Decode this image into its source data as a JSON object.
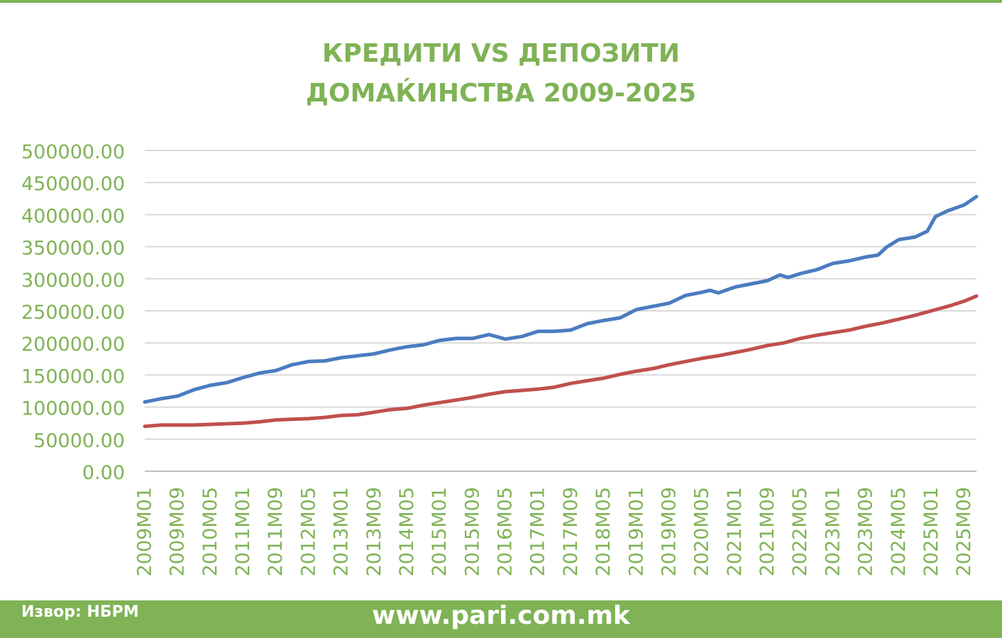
{
  "title_line1": "КРЕДИТИ VS ДЕПОЗИТИ",
  "title_line2": "ДОМАЌИНСТВА 2009-2025",
  "source": "Извор: НБРМ",
  "website": "www.pari.com.mk",
  "colors": {
    "brand_green": "#7fb356",
    "deposits_line": "#4a7cc0",
    "credits_line": "#c0504d",
    "gridline": "#d9d9d9"
  },
  "chart_data": {
    "type": "line",
    "title": "КРЕДИТИ VS ДЕПОЗИТИ ДОМАЌИНСТВА 2009-2025",
    "xlabel": "",
    "ylabel": "",
    "ylim": [
      0,
      500000
    ],
    "yticks": [
      "0.00",
      "50000.00",
      "100000.00",
      "150000.00",
      "200000.00",
      "250000.00",
      "300000.00",
      "350000.00",
      "400000.00",
      "450000.00",
      "500000.00"
    ],
    "xticks": [
      "2009M01",
      "2009M09",
      "2010M05",
      "2011M01",
      "2011M09",
      "2012M05",
      "2013M01",
      "2013M09",
      "2014M05",
      "2015M01",
      "2015M09",
      "2016M05",
      "2017M01",
      "2017M09",
      "2018M05",
      "2019M01",
      "2019M09",
      "2020M05",
      "2021M01",
      "2021M09",
      "2022M05",
      "2023M01",
      "2023M09",
      "2024M05",
      "2025M01",
      "2025M09"
    ],
    "grid": true,
    "legend": "none",
    "series": [
      {
        "color": "#4a7cc0",
        "x": [
          "2009M01",
          "2009M05",
          "2009M09",
          "2010M01",
          "2010M05",
          "2010M09",
          "2011M01",
          "2011M05",
          "2011M09",
          "2012M01",
          "2012M05",
          "2012M09",
          "2013M01",
          "2013M05",
          "2013M09",
          "2014M01",
          "2014M05",
          "2014M09",
          "2015M01",
          "2015M05",
          "2015M09",
          "2016M01",
          "2016M05",
          "2016M09",
          "2017M01",
          "2017M05",
          "2017M09",
          "2018M01",
          "2018M05",
          "2018M09",
          "2019M01",
          "2019M05",
          "2019M09",
          "2020M01",
          "2020M05",
          "2020M07",
          "2020M09",
          "2021M01",
          "2021M05",
          "2021M09",
          "2021M12",
          "2022M02",
          "2022M05",
          "2022M09",
          "2023M01",
          "2023M05",
          "2023M09",
          "2023M12",
          "2024M02",
          "2024M05",
          "2024M09",
          "2024M12",
          "2025M02",
          "2025M05",
          "2025M09",
          "2025M12"
        ],
        "values": [
          108000,
          113000,
          117000,
          127000,
          134000,
          138000,
          146000,
          153000,
          157000,
          166000,
          171000,
          172000,
          177000,
          180000,
          183000,
          189000,
          194000,
          197000,
          204000,
          207000,
          207000,
          213000,
          206000,
          210000,
          218000,
          218000,
          220000,
          230000,
          235000,
          239000,
          252000,
          257000,
          262000,
          274000,
          279000,
          282000,
          278000,
          287000,
          292000,
          297000,
          306000,
          302000,
          308000,
          314000,
          324000,
          328000,
          334000,
          337000,
          349000,
          361000,
          365000,
          374000,
          397000,
          406000,
          415000,
          428000
        ]
      },
      {
        "color": "#c0504d",
        "x": [
          "2009M01",
          "2009M05",
          "2009M09",
          "2010M01",
          "2010M05",
          "2010M09",
          "2011M01",
          "2011M05",
          "2011M09",
          "2012M01",
          "2012M05",
          "2012M09",
          "2013M01",
          "2013M05",
          "2013M09",
          "2014M01",
          "2014M05",
          "2014M09",
          "2015M01",
          "2015M05",
          "2015M09",
          "2016M01",
          "2016M05",
          "2016M09",
          "2017M01",
          "2017M05",
          "2017M09",
          "2018M01",
          "2018M05",
          "2018M09",
          "2019M01",
          "2019M05",
          "2019M09",
          "2020M01",
          "2020M05",
          "2020M09",
          "2021M01",
          "2021M05",
          "2021M09",
          "2022M01",
          "2022M05",
          "2022M09",
          "2023M01",
          "2023M05",
          "2023M09",
          "2024M01",
          "2024M05",
          "2024M09",
          "2025M01",
          "2025M05",
          "2025M09",
          "2025M12"
        ],
        "values": [
          70000,
          72000,
          72000,
          72000,
          73000,
          74000,
          75000,
          77000,
          80000,
          81000,
          82000,
          84000,
          87000,
          88000,
          92000,
          96000,
          98000,
          103000,
          107000,
          111000,
          115000,
          120000,
          124000,
          126000,
          128000,
          131000,
          137000,
          141000,
          145000,
          151000,
          156000,
          160000,
          166000,
          171000,
          176000,
          180000,
          185000,
          190000,
          196000,
          200000,
          207000,
          212000,
          216000,
          220000,
          226000,
          231000,
          237000,
          243000,
          250000,
          257000,
          265000,
          273000
        ]
      }
    ]
  }
}
